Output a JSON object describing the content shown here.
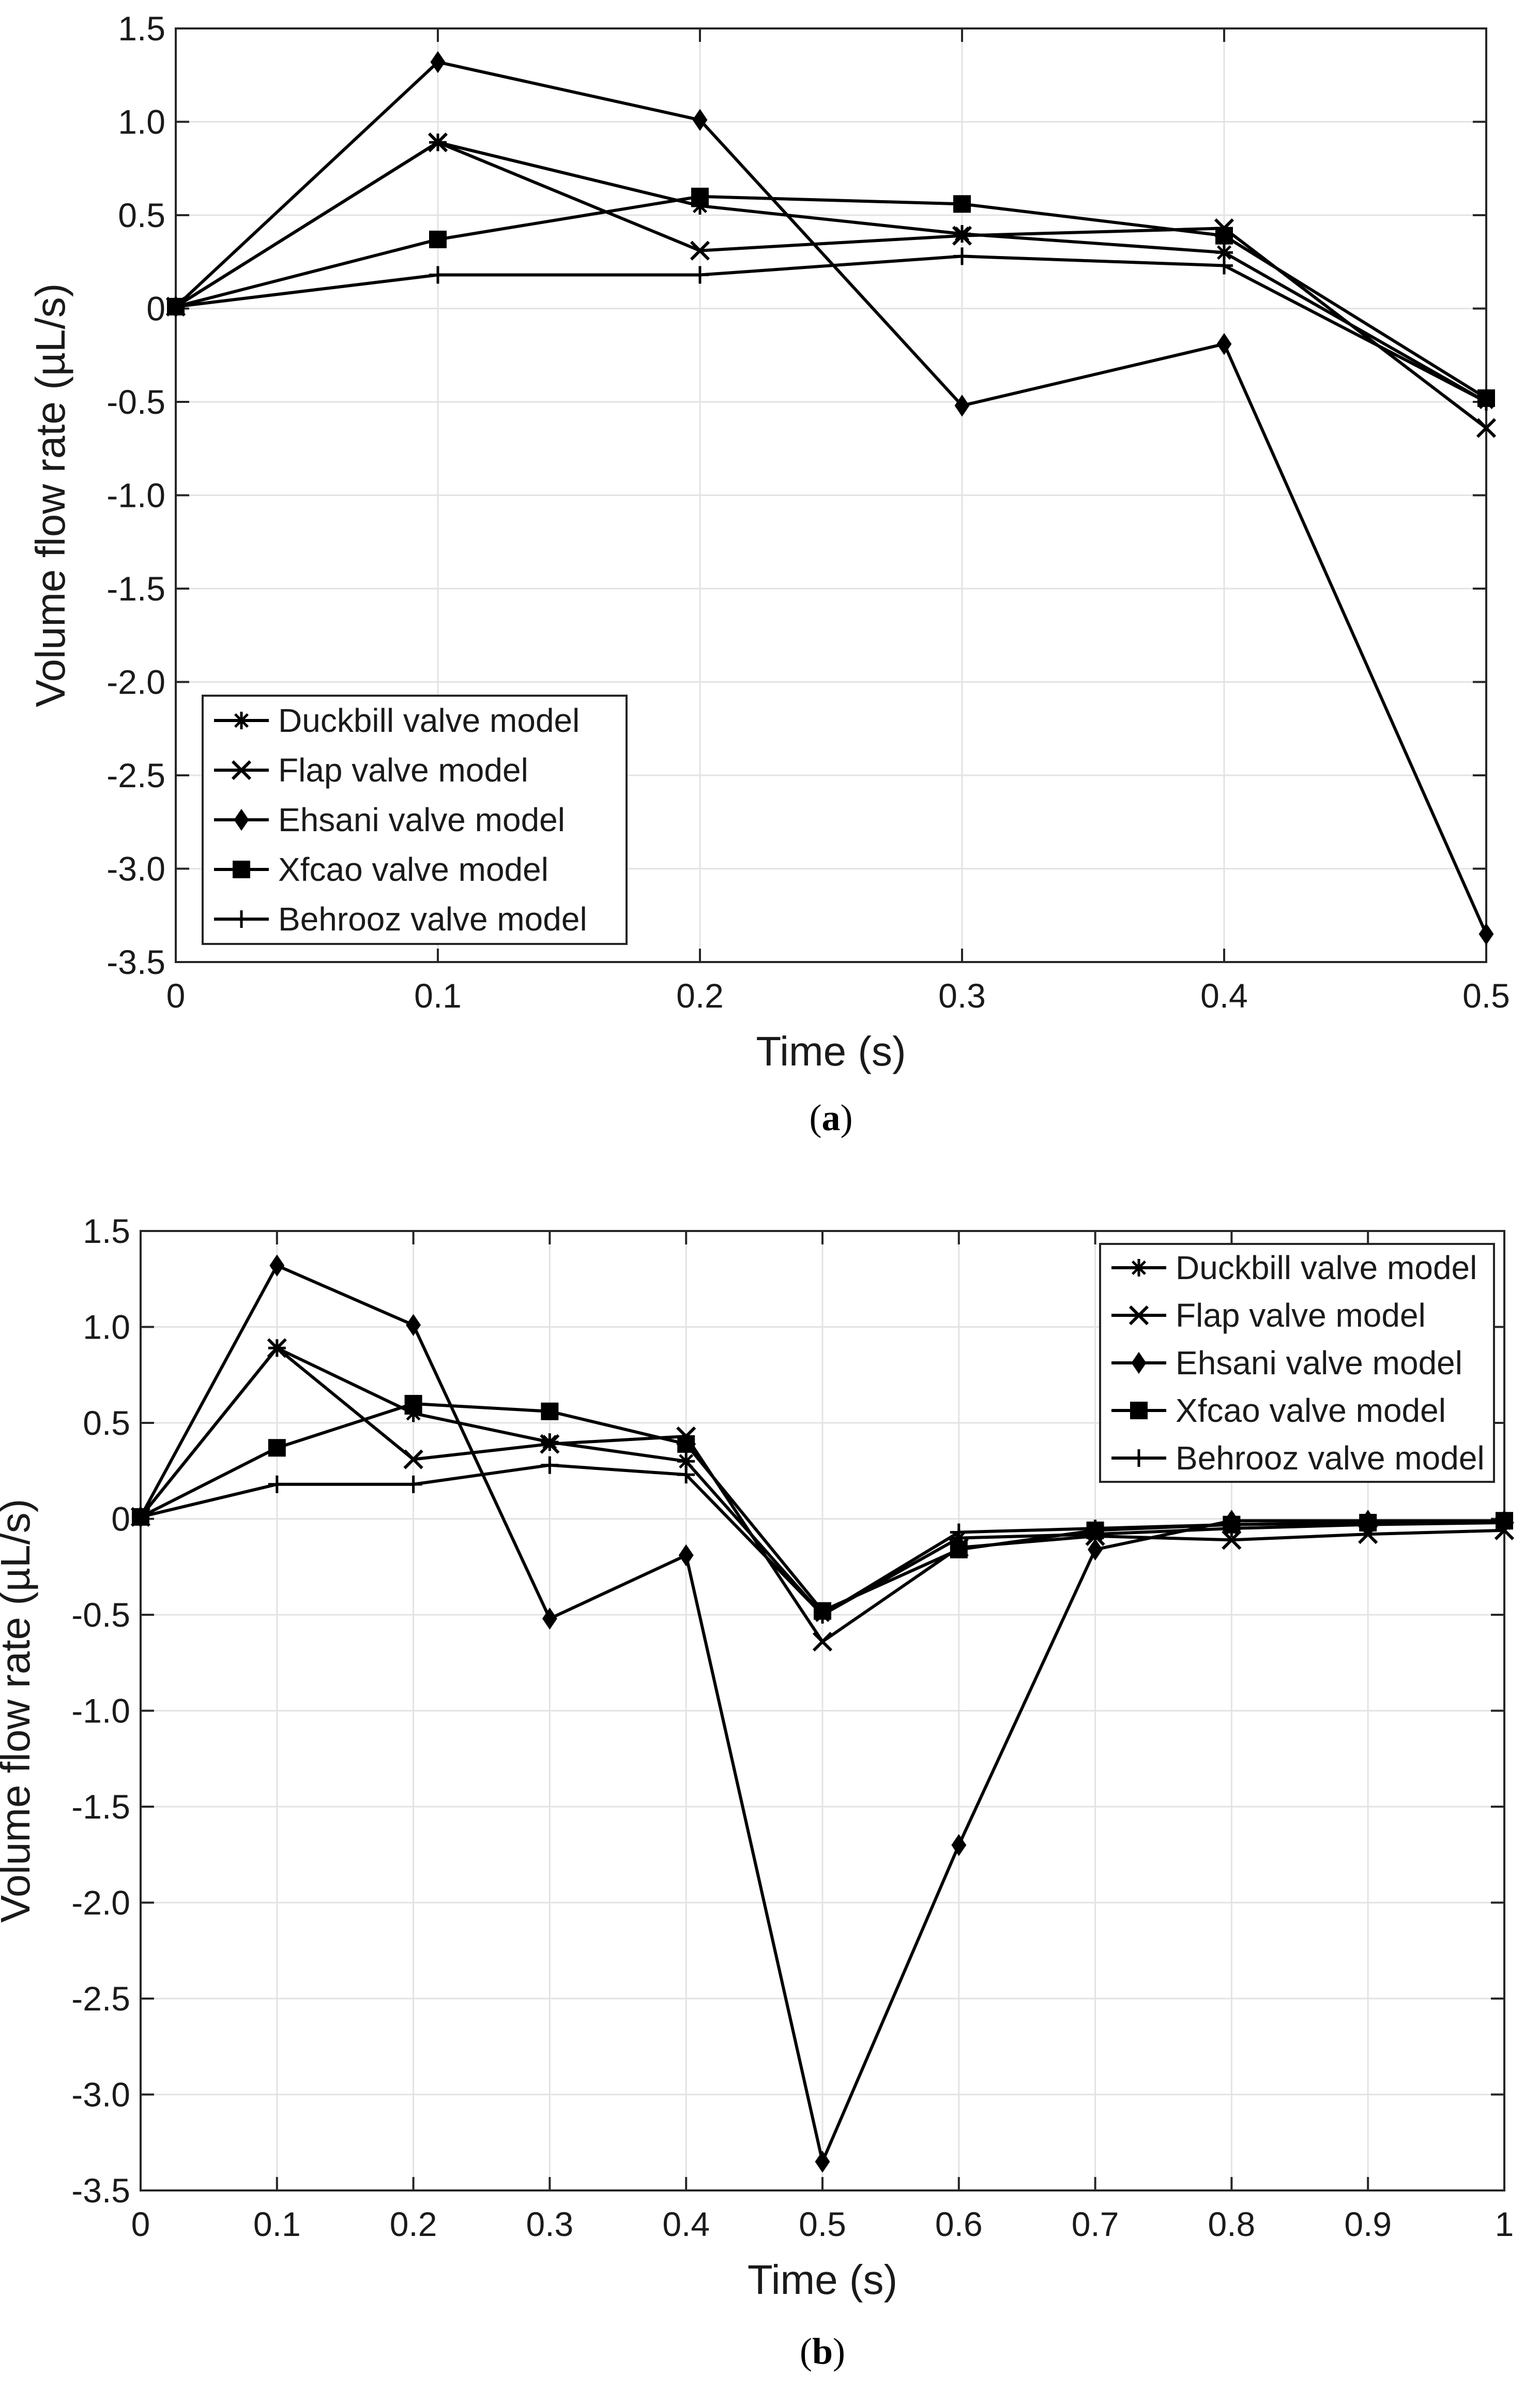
{
  "chart_data": [
    {
      "type": "line",
      "caption": "(a)",
      "caption_letter": "a",
      "xlabel": "Time (s)",
      "ylabel": "Volume flow rate (µL/s)",
      "xlim": [
        0,
        0.5
      ],
      "ylim": [
        -3.5,
        1.5
      ],
      "xticks": [
        0,
        0.1,
        0.2,
        0.3,
        0.4,
        0.5
      ],
      "xtick_labels": [
        "0",
        "0.1",
        "0.2",
        "0.3",
        "0.4",
        "0.5"
      ],
      "yticks": [
        1.5,
        1.0,
        0.5,
        0,
        -0.5,
        -1.0,
        -1.5,
        -2.0,
        -2.5,
        -3.0,
        -3.5
      ],
      "ytick_labels": [
        "1.5",
        "1.0",
        "0.5",
        "0",
        "-0.5",
        "-1.0",
        "-1.5",
        "-2.0",
        "-2.5",
        "-3.0",
        "-3.5"
      ],
      "grid": true,
      "legend_position": "bottom-left",
      "x": [
        0,
        0.1,
        0.2,
        0.3,
        0.4,
        0.5
      ],
      "series": [
        {
          "name": "Duckbill valve model",
          "marker": "asterisk",
          "values": [
            0.01,
            0.89,
            0.55,
            0.4,
            0.3,
            -0.5
          ]
        },
        {
          "name": "Flap valve model",
          "marker": "x",
          "values": [
            0.01,
            0.89,
            0.31,
            0.39,
            0.43,
            -0.64
          ]
        },
        {
          "name": "Ehsani valve model",
          "marker": "diamond",
          "values": [
            0.01,
            1.32,
            1.01,
            -0.52,
            -0.19,
            -3.35
          ]
        },
        {
          "name": "Xfcao valve model",
          "marker": "square",
          "values": [
            0.01,
            0.37,
            0.6,
            0.56,
            0.39,
            -0.48
          ]
        },
        {
          "name": "Behrooz valve model",
          "marker": "plus",
          "values": [
            0.01,
            0.18,
            0.18,
            0.28,
            0.23,
            -0.5
          ]
        }
      ]
    },
    {
      "type": "line",
      "caption": "(b)",
      "caption_letter": "b",
      "xlabel": "Time (s)",
      "ylabel": "Volume flow rate (µL/s)",
      "xlim": [
        0,
        1
      ],
      "ylim": [
        -3.5,
        1.5
      ],
      "xticks": [
        0,
        0.1,
        0.2,
        0.3,
        0.4,
        0.5,
        0.6,
        0.7,
        0.8,
        0.9,
        1
      ],
      "xtick_labels": [
        "0",
        "0.1",
        "0.2",
        "0.3",
        "0.4",
        "0.5",
        "0.6",
        "0.7",
        "0.8",
        "0.9",
        "1"
      ],
      "yticks": [
        1.5,
        1.0,
        0.5,
        0,
        -0.5,
        -1.0,
        -1.5,
        -2.0,
        -2.5,
        -3.0,
        -3.5
      ],
      "ytick_labels": [
        "1.5",
        "1.0",
        "0.5",
        "0",
        "-0.5",
        "-1.0",
        "-1.5",
        "-2.0",
        "-2.5",
        "-3.0",
        "-3.5"
      ],
      "grid": true,
      "legend_position": "top-right",
      "x": [
        0,
        0.1,
        0.2,
        0.3,
        0.4,
        0.5,
        0.6,
        0.7,
        0.8,
        0.9,
        1.0
      ],
      "series": [
        {
          "name": "Duckbill valve model",
          "marker": "asterisk",
          "values": [
            0.01,
            0.89,
            0.55,
            0.4,
            0.3,
            -0.5,
            -0.1,
            -0.08,
            -0.05,
            -0.03,
            -0.02
          ]
        },
        {
          "name": "Flap valve model",
          "marker": "x",
          "values": [
            0.01,
            0.89,
            0.31,
            0.39,
            0.43,
            -0.64,
            -0.15,
            -0.09,
            -0.11,
            -0.08,
            -0.06
          ]
        },
        {
          "name": "Ehsani valve model",
          "marker": "diamond",
          "values": [
            0.01,
            1.32,
            1.01,
            -0.52,
            -0.19,
            -3.35,
            -1.7,
            -0.16,
            -0.01,
            -0.01,
            -0.01
          ]
        },
        {
          "name": "Xfcao valve model",
          "marker": "square",
          "values": [
            0.01,
            0.37,
            0.6,
            0.56,
            0.39,
            -0.48,
            -0.16,
            -0.06,
            -0.03,
            -0.02,
            -0.01
          ]
        },
        {
          "name": "Behrooz valve model",
          "marker": "plus",
          "values": [
            0.01,
            0.18,
            0.18,
            0.28,
            0.23,
            -0.5,
            -0.07,
            -0.05,
            -0.03,
            -0.02,
            -0.01
          ]
        }
      ]
    }
  ]
}
